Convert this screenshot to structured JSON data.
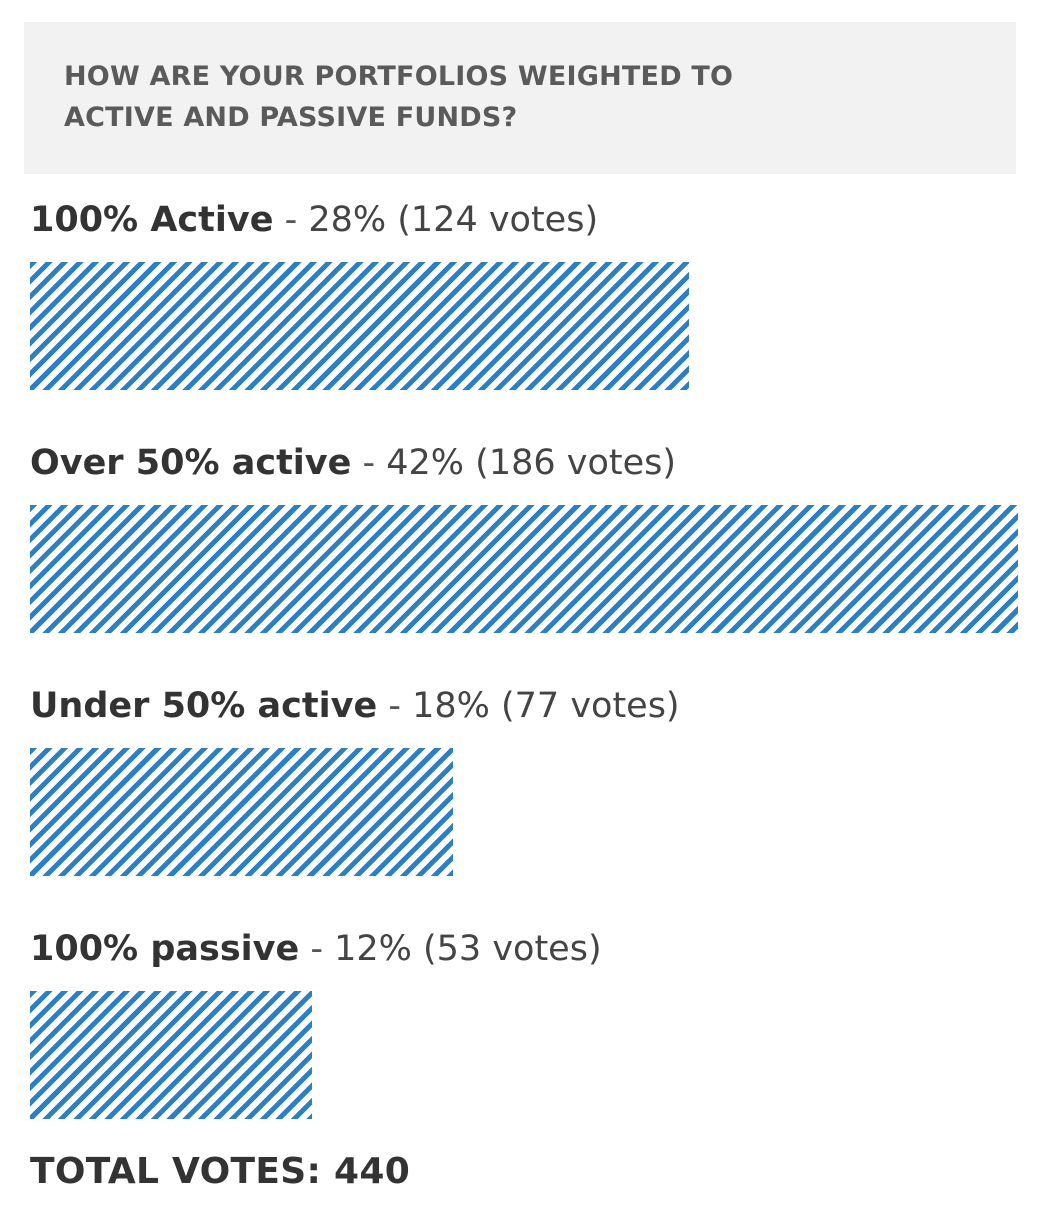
{
  "poll": {
    "question": "HOW ARE YOUR PORTFOLIOS WEIGHTED TO ACTIVE AND PASSIVE FUNDS?",
    "total_label": "TOTAL VOTES: 440",
    "bar_color": "#2b7fc4",
    "question_bg": "#f2f2f2"
  },
  "chart_data": {
    "type": "bar",
    "orientation": "horizontal",
    "title": "HOW ARE YOUR PORTFOLIOS WEIGHTED TO ACTIVE AND PASSIVE FUNDS?",
    "categories": [
      "100% Active",
      "Over 50% active",
      "Under 50% active",
      "100% passive"
    ],
    "values": [
      28,
      42,
      18,
      12
    ],
    "votes": [
      124,
      186,
      77,
      53
    ],
    "total_votes": 440,
    "stat_labels": [
      "28% (124 votes)",
      "42% (186 votes)",
      "18% (77 votes)",
      "12% (53 votes)"
    ],
    "xlim": [
      0,
      42
    ],
    "grid": false,
    "legend": "none"
  }
}
